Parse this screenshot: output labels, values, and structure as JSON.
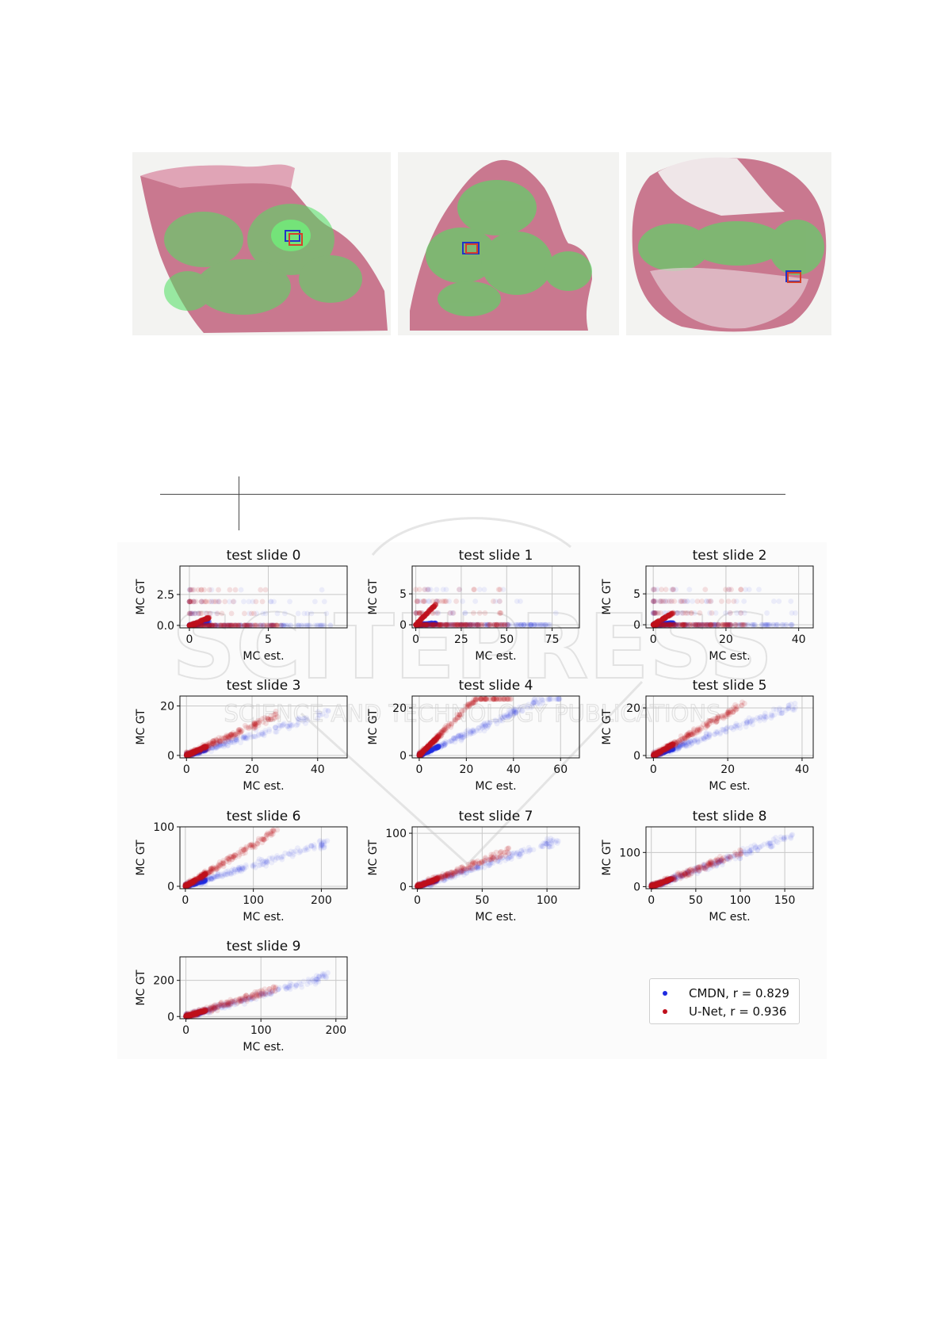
{
  "colors": {
    "cmdn": "#1f2be0",
    "unet": "#c0101c",
    "tissue": "#c9788f",
    "tissue_dark": "#a9506e",
    "heat": "#4ee060",
    "box_blue": "#2035c8",
    "box_red": "#d6402a",
    "watermark": "#d0d0d0"
  },
  "thumbnails": [
    {
      "name": "slide-thumbnail-a"
    },
    {
      "name": "slide-thumbnail-b"
    },
    {
      "name": "slide-thumbnail-c"
    }
  ],
  "watermark": {
    "big": "SCITEPRESS",
    "small": "SCIENCE AND TECHNOLOGY PUBLICATIONS"
  },
  "legend": [
    {
      "label": "CMDN, r = 0.829",
      "color": "#1f2be0"
    },
    {
      "label": "U-Net, r = 0.936",
      "color": "#c0101c"
    }
  ],
  "chart_data": [
    {
      "type": "scatter",
      "title": "test slide 0",
      "xlabel": "MC est.",
      "ylabel": "MC GT",
      "xlim": [
        -0.6,
        10
      ],
      "ylim": [
        -0.2,
        4.8
      ],
      "xticks": [
        0,
        5
      ],
      "xtick_labels": [
        "0",
        "5"
      ],
      "yticks": [
        0,
        2.5
      ],
      "ytick_labels": [
        "0.0",
        "2.5"
      ],
      "grid": true,
      "series": [
        {
          "name": "CMDN",
          "trend": 0.25
        },
        {
          "name": "U-Net",
          "trend": 0.5
        }
      ]
    },
    {
      "type": "scatter",
      "title": "test slide 1",
      "xlabel": "MC est.",
      "ylabel": "MC GT",
      "xlim": [
        -2,
        90
      ],
      "ylim": [
        -0.5,
        9.5
      ],
      "xticks": [
        0,
        25,
        50,
        75
      ],
      "xtick_labels": [
        "0",
        "25",
        "50",
        "75"
      ],
      "yticks": [
        0,
        5
      ],
      "ytick_labels": [
        "0",
        "5"
      ],
      "grid": true,
      "series": [
        {
          "name": "CMDN",
          "trend": 0.02
        },
        {
          "name": "U-Net",
          "trend": 0.3
        }
      ]
    },
    {
      "type": "scatter",
      "title": "test slide 2",
      "xlabel": "MC est.",
      "ylabel": "MC GT",
      "xlim": [
        -2,
        44
      ],
      "ylim": [
        -0.5,
        9.5
      ],
      "xticks": [
        0,
        20,
        40
      ],
      "xtick_labels": [
        "0",
        "20",
        "40"
      ],
      "yticks": [
        0,
        5
      ],
      "ytick_labels": [
        "0",
        "5"
      ],
      "grid": true,
      "series": [
        {
          "name": "CMDN",
          "trend": 0.05
        },
        {
          "name": "U-Net",
          "trend": 0.35
        }
      ]
    },
    {
      "type": "scatter",
      "title": "test slide 3",
      "xlabel": "MC est.",
      "ylabel": "MC GT",
      "xlim": [
        -2,
        49
      ],
      "ylim": [
        -1,
        24
      ],
      "xticks": [
        0,
        20,
        40
      ],
      "xtick_labels": [
        "0",
        "20",
        "40"
      ],
      "yticks": [
        0,
        20
      ],
      "ytick_labels": [
        "0",
        "20"
      ],
      "grid": true,
      "series": [
        {
          "name": "CMDN",
          "trend": 0.4
        },
        {
          "name": "U-Net",
          "trend": 0.6
        }
      ]
    },
    {
      "type": "scatter",
      "title": "test slide 4",
      "xlabel": "MC est.",
      "ylabel": "MC GT",
      "xlim": [
        -3,
        68
      ],
      "ylim": [
        -1,
        25
      ],
      "xticks": [
        0,
        20,
        40,
        60
      ],
      "xtick_labels": [
        "0",
        "20",
        "40",
        "60"
      ],
      "yticks": [
        0,
        20
      ],
      "ytick_labels": [
        "0",
        "20"
      ],
      "grid": true,
      "series": [
        {
          "name": "CMDN",
          "trend": 0.45
        },
        {
          "name": "U-Net",
          "trend": 1.0
        }
      ]
    },
    {
      "type": "scatter",
      "title": "test slide 5",
      "xlabel": "MC est.",
      "ylabel": "MC GT",
      "xlim": [
        -2,
        43
      ],
      "ylim": [
        -1,
        25
      ],
      "xticks": [
        0,
        20,
        40
      ],
      "xtick_labels": [
        "0",
        "20",
        "40"
      ],
      "yticks": [
        0,
        20
      ],
      "ytick_labels": [
        "0",
        "20"
      ],
      "grid": true,
      "series": [
        {
          "name": "CMDN",
          "trend": 0.55
        },
        {
          "name": "U-Net",
          "trend": 0.9
        }
      ]
    },
    {
      "type": "scatter",
      "title": "test slide 6",
      "xlabel": "MC est.",
      "ylabel": "MC GT",
      "xlim": [
        -8,
        238
      ],
      "ylim": [
        -4,
        100
      ],
      "xticks": [
        0,
        100,
        200
      ],
      "xtick_labels": [
        "0",
        "100",
        "200"
      ],
      "yticks": [
        0,
        100
      ],
      "ytick_labels": [
        "0",
        "100"
      ],
      "grid": true,
      "series": [
        {
          "name": "CMDN",
          "trend": 0.35
        },
        {
          "name": "U-Net",
          "trend": 0.7
        }
      ]
    },
    {
      "type": "scatter",
      "title": "test slide 7",
      "xlabel": "MC est.",
      "ylabel": "MC GT",
      "xlim": [
        -4,
        125
      ],
      "ylim": [
        -4,
        112
      ],
      "xticks": [
        0,
        50,
        100
      ],
      "xtick_labels": [
        "0",
        "50",
        "100"
      ],
      "yticks": [
        0,
        100
      ],
      "ytick_labels": [
        "0",
        "100"
      ],
      "grid": true,
      "series": [
        {
          "name": "CMDN",
          "trend": 0.8
        },
        {
          "name": "U-Net",
          "trend": 0.95
        }
      ]
    },
    {
      "type": "scatter",
      "title": "test slide 8",
      "xlabel": "MC est.",
      "ylabel": "MC GT",
      "xlim": [
        -6,
        182
      ],
      "ylim": [
        -6,
        175
      ],
      "xticks": [
        0,
        50,
        100,
        150
      ],
      "xtick_labels": [
        "0",
        "50",
        "100",
        "150"
      ],
      "yticks": [
        0,
        100
      ],
      "ytick_labels": [
        "0",
        "100"
      ],
      "grid": true,
      "series": [
        {
          "name": "CMDN",
          "trend": 0.95
        },
        {
          "name": "U-Net",
          "trend": 1.0
        }
      ]
    },
    {
      "type": "scatter",
      "title": "test slide 9",
      "xlabel": "MC est.",
      "ylabel": "MC GT",
      "xlim": [
        -8,
        215
      ],
      "ylim": [
        -12,
        330
      ],
      "xticks": [
        0,
        100,
        200
      ],
      "xtick_labels": [
        "0",
        "100",
        "200"
      ],
      "yticks": [
        0,
        200
      ],
      "ytick_labels": [
        "0",
        "200"
      ],
      "grid": true,
      "series": [
        {
          "name": "CMDN",
          "trend": 1.2
        },
        {
          "name": "U-Net",
          "trend": 1.3
        }
      ]
    }
  ]
}
